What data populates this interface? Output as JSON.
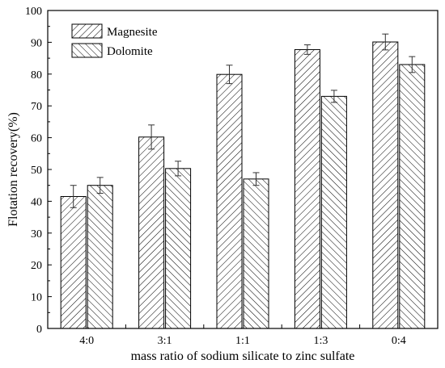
{
  "chart_data": {
    "type": "bar",
    "xlabel": "mass ratio of sodium silicate to zinc sulfate",
    "ylabel": "Flotation recovery(%)",
    "ylim": [
      0,
      100
    ],
    "yticks": [
      "0",
      "10",
      "20",
      "30",
      "40",
      "50",
      "60",
      "70",
      "80",
      "90",
      "100"
    ],
    "categories": [
      "4:0",
      "3:1",
      "1:1",
      "1:3",
      "0:4"
    ],
    "grid": false,
    "legend_position": "top-left",
    "series": [
      {
        "name": "Magnesite",
        "pattern": "forward-diagonal-hatch",
        "values": [
          41.5,
          60.2,
          79.9,
          87.7,
          90.1
        ],
        "errors": [
          3.5,
          3.8,
          2.9,
          1.5,
          2.5
        ]
      },
      {
        "name": "Dolomite",
        "pattern": "backward-diagonal-hatch",
        "values": [
          45.0,
          50.3,
          47.0,
          73.0,
          83.0
        ],
        "errors": [
          2.5,
          2.3,
          2.0,
          1.9,
          2.5
        ]
      }
    ],
    "colors": {
      "bar_stroke": "#000000",
      "hatch": "#000000",
      "background": "#ffffff"
    }
  }
}
